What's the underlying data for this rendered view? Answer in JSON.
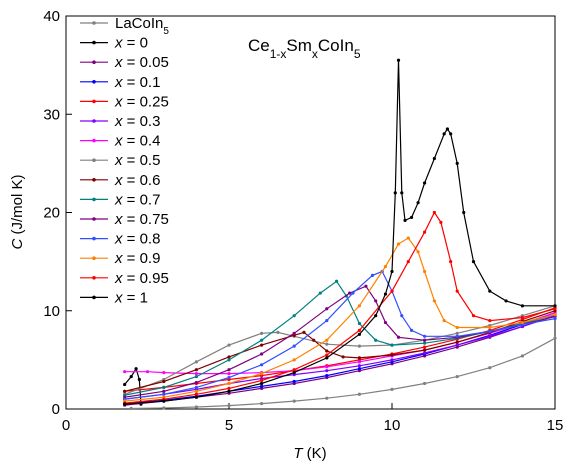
{
  "chart_data": {
    "type": "line",
    "title": [
      "Ce",
      "1-x",
      "Sm",
      "x",
      "CoIn",
      "5"
    ],
    "xlabel": "T (K)",
    "ylabel": "C (J/mol K)",
    "xlim": [
      0,
      15
    ],
    "ylim": [
      0,
      40
    ],
    "xticks": [
      0,
      5,
      10,
      15
    ],
    "yticks": [
      0,
      10,
      20,
      30,
      40
    ],
    "grid": false,
    "legend": "upper left",
    "series": [
      {
        "name": "LaCoIn5",
        "color": "#808080",
        "x": [
          2,
          3,
          4,
          5,
          6,
          7,
          8,
          9,
          10,
          11,
          12,
          13,
          14,
          15
        ],
        "values": [
          0.05,
          0.1,
          0.2,
          0.35,
          0.55,
          0.8,
          1.1,
          1.5,
          2.0,
          2.6,
          3.3,
          4.2,
          5.4,
          7.2
        ]
      },
      {
        "name": "x = 0",
        "color": "#000000",
        "x": [
          1.8,
          2.0,
          2.15,
          2.25,
          2.3
        ],
        "values": [
          2.5,
          3.3,
          4.1,
          3.0,
          0.5
        ]
      },
      {
        "name": "x = 0.05",
        "color": "#800080",
        "x": [
          1.8,
          3,
          4,
          5,
          6,
          7,
          8,
          9,
          10,
          11,
          12,
          13,
          14,
          15
        ],
        "values": [
          0.4,
          0.8,
          1.2,
          1.6,
          2.1,
          2.6,
          3.2,
          3.9,
          4.6,
          5.4,
          6.3,
          7.3,
          8.4,
          9.5
        ]
      },
      {
        "name": "x = 0.1",
        "color": "#0000ff",
        "x": [
          1.8,
          3,
          4,
          5,
          6,
          7,
          8,
          9,
          10,
          11,
          12,
          13,
          14,
          15
        ],
        "values": [
          0.5,
          0.9,
          1.3,
          1.8,
          2.3,
          2.8,
          3.4,
          4.1,
          4.8,
          5.6,
          6.5,
          7.5,
          8.6,
          9.8
        ]
      },
      {
        "name": "x = 0.25",
        "color": "#ff0000",
        "x": [
          1.8,
          3,
          4,
          5,
          6,
          7,
          8,
          9,
          10,
          11,
          12,
          13,
          14,
          15
        ],
        "values": [
          1.8,
          2.2,
          2.6,
          3.0,
          3.4,
          3.9,
          4.4,
          5.0,
          5.6,
          6.3,
          7.1,
          8.0,
          9.1,
          10.3
        ]
      },
      {
        "name": "x = 0.3",
        "color": "#8000ff",
        "x": [
          1.8,
          3,
          4,
          5,
          6,
          7,
          8,
          9,
          10,
          11,
          12,
          13,
          14,
          15
        ],
        "values": [
          1.0,
          1.5,
          2.0,
          2.6,
          3.1,
          3.5,
          3.9,
          4.4,
          5.0,
          5.7,
          6.5,
          7.4,
          8.4,
          9.5
        ]
      },
      {
        "name": "x = 0.4",
        "color": "#ff00ff",
        "x": [
          1.8,
          2.5,
          3,
          4,
          5,
          6,
          7,
          8,
          9,
          10,
          11,
          12,
          13,
          14,
          15
        ],
        "values": [
          3.8,
          3.8,
          3.7,
          3.6,
          3.6,
          3.7,
          3.9,
          4.3,
          4.8,
          5.4,
          6.0,
          6.8,
          7.7,
          8.7,
          9.8
        ]
      },
      {
        "name": "x = 0.5",
        "color": "#808080",
        "x": [
          1.8,
          3,
          4,
          5,
          6,
          6.5,
          7,
          8,
          9,
          10,
          11,
          12,
          13,
          14,
          15
        ],
        "values": [
          1.5,
          3.0,
          4.8,
          6.5,
          7.7,
          7.8,
          7.4,
          6.6,
          6.4,
          6.5,
          7.0,
          7.7,
          8.5,
          9.5,
          10.5
        ]
      },
      {
        "name": "x = 0.6",
        "color": "#800000",
        "x": [
          1.8,
          3,
          4,
          5,
          6,
          7,
          7.3,
          7.6,
          8,
          8.5,
          9,
          10,
          11,
          12,
          13,
          14,
          15
        ],
        "values": [
          1.8,
          2.8,
          4.0,
          5.3,
          6.5,
          7.5,
          7.8,
          7.0,
          5.9,
          5.3,
          5.2,
          5.5,
          6.0,
          6.8,
          7.8,
          8.9,
          10.0
        ]
      },
      {
        "name": "x = 0.7",
        "color": "#008080",
        "x": [
          1.8,
          3,
          4,
          5,
          6,
          7,
          7.8,
          8.3,
          8.6,
          9,
          9.5,
          10,
          11,
          12,
          13,
          14,
          15
        ],
        "values": [
          1.4,
          2.2,
          3.3,
          5.0,
          7.0,
          9.5,
          11.8,
          13.0,
          11.5,
          8.7,
          7.0,
          6.5,
          6.7,
          7.2,
          7.9,
          8.7,
          9.6
        ]
      },
      {
        "name": "x = 0.75",
        "color": "#800080",
        "x": [
          1.8,
          3,
          4,
          5,
          6,
          7,
          8,
          8.7,
          9.2,
          9.5,
          9.8,
          10.2,
          11,
          12,
          13,
          14,
          15
        ],
        "values": [
          1.2,
          1.8,
          2.7,
          4.0,
          5.6,
          7.7,
          10.2,
          11.8,
          12.5,
          11.0,
          8.8,
          7.3,
          7.0,
          7.3,
          7.9,
          8.6,
          9.4
        ]
      },
      {
        "name": "x = 0.8",
        "color": "#3050ff",
        "x": [
          1.8,
          3,
          4,
          5,
          6,
          7,
          8,
          8.8,
          9.4,
          9.7,
          10,
          10.3,
          10.6,
          11,
          12,
          13,
          14,
          15
        ],
        "values": [
          1.0,
          1.5,
          2.2,
          3.2,
          4.5,
          6.4,
          9.0,
          11.8,
          13.6,
          14.0,
          12.0,
          9.5,
          8.0,
          7.4,
          7.4,
          7.9,
          8.6,
          9.2
        ]
      },
      {
        "name": "x = 0.9",
        "color": "#ff8000",
        "x": [
          1.8,
          3,
          4,
          5,
          6,
          7,
          8,
          9,
          9.8,
          10.2,
          10.5,
          10.8,
          11,
          11.3,
          11.6,
          12,
          13,
          14,
          15
        ],
        "values": [
          0.8,
          1.2,
          1.8,
          2.6,
          3.6,
          5.0,
          7.0,
          10.5,
          14.5,
          16.8,
          17.4,
          16.0,
          14.0,
          11.0,
          9.0,
          8.3,
          8.3,
          8.8,
          9.6
        ]
      },
      {
        "name": "x = 0.95",
        "color": "#ff0000",
        "x": [
          1.8,
          3,
          4,
          5,
          6,
          7,
          8,
          9,
          10,
          10.5,
          11,
          11.3,
          11.5,
          11.8,
          12,
          12.5,
          13,
          14,
          15
        ],
        "values": [
          0.6,
          1.0,
          1.5,
          2.1,
          2.9,
          4.0,
          5.5,
          8.0,
          12.0,
          15.0,
          18.0,
          20.0,
          19.0,
          15.0,
          12.0,
          9.5,
          9.0,
          9.3,
          10.2
        ]
      },
      {
        "name": "x = 1",
        "color": "#000000",
        "x": [
          1.8,
          3,
          4,
          5,
          6,
          7,
          8,
          9,
          9.5,
          9.8,
          10,
          10.1,
          10.2,
          10.3,
          10.4,
          10.6,
          10.8,
          11,
          11.3,
          11.6,
          11.7,
          11.8,
          12,
          12.2,
          12.5,
          13,
          13.5,
          14,
          15
        ],
        "values": [
          0.5,
          0.8,
          1.2,
          1.8,
          2.6,
          3.7,
          5.2,
          7.6,
          9.5,
          11.7,
          14,
          22,
          35.5,
          22,
          19.2,
          19.5,
          21,
          23,
          25.5,
          28,
          28.5,
          28,
          25,
          20,
          15,
          12,
          11,
          10.5,
          10.5
        ]
      }
    ]
  }
}
